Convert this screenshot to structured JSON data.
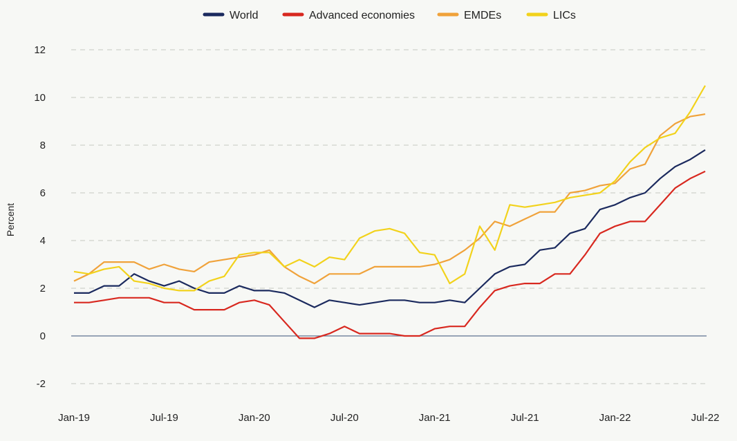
{
  "chart_data": {
    "type": "line",
    "ylabel": "Percent",
    "ylim": [
      -2,
      12
    ],
    "yticks": [
      -2,
      0,
      2,
      4,
      6,
      8,
      10,
      12
    ],
    "grid": true,
    "legend_position": "top",
    "x": [
      "Jan-19",
      "Feb-19",
      "Mar-19",
      "Apr-19",
      "May-19",
      "Jun-19",
      "Jul-19",
      "Aug-19",
      "Sep-19",
      "Oct-19",
      "Nov-19",
      "Dec-19",
      "Jan-20",
      "Feb-20",
      "Mar-20",
      "Apr-20",
      "May-20",
      "Jun-20",
      "Jul-20",
      "Aug-20",
      "Sep-20",
      "Oct-20",
      "Nov-20",
      "Dec-20",
      "Jan-21",
      "Feb-21",
      "Mar-21",
      "Apr-21",
      "May-21",
      "Jun-21",
      "Jul-21",
      "Aug-21",
      "Sep-21",
      "Oct-21",
      "Nov-21",
      "Dec-21",
      "Jan-22",
      "Feb-22",
      "Mar-22",
      "Apr-22",
      "May-22",
      "Jun-22",
      "Jul-22"
    ],
    "xtick_labels": [
      "Jan-19",
      "Jul-19",
      "Jan-20",
      "Jul-20",
      "Jan-21",
      "Jul-21",
      "Jan-22",
      "Jul-22"
    ],
    "xtick_index": [
      0,
      6,
      12,
      18,
      24,
      30,
      36,
      42
    ],
    "series": [
      {
        "name": "World",
        "color": "#1b2a5e",
        "values": [
          1.8,
          1.8,
          2.1,
          2.1,
          2.6,
          2.3,
          2.1,
          2.3,
          2.0,
          1.8,
          1.8,
          2.1,
          1.9,
          1.9,
          1.8,
          1.5,
          1.2,
          1.5,
          1.4,
          1.3,
          1.4,
          1.5,
          1.5,
          1.4,
          1.4,
          1.5,
          1.4,
          2.0,
          2.6,
          2.9,
          3.0,
          3.6,
          3.7,
          4.3,
          4.5,
          5.3,
          5.5,
          5.8,
          6.0,
          6.6,
          7.1,
          7.4,
          7.8
        ]
      },
      {
        "name": "Advanced economies",
        "color": "#d8281f",
        "values": [
          1.4,
          1.4,
          1.5,
          1.6,
          1.6,
          1.6,
          1.4,
          1.4,
          1.1,
          1.1,
          1.1,
          1.4,
          1.5,
          1.3,
          0.6,
          -0.1,
          -0.1,
          0.1,
          0.4,
          0.1,
          0.1,
          0.1,
          0.0,
          0.0,
          0.3,
          0.4,
          0.4,
          1.2,
          1.9,
          2.1,
          2.2,
          2.2,
          2.6,
          2.6,
          3.4,
          4.3,
          4.6,
          4.8,
          4.8,
          5.5,
          6.2,
          6.6,
          6.9
        ]
      },
      {
        "name": "EMDEs",
        "color": "#f0a23a",
        "values": [
          2.3,
          2.6,
          3.1,
          3.1,
          3.1,
          2.8,
          3.0,
          2.8,
          2.7,
          3.1,
          3.2,
          3.3,
          3.4,
          3.6,
          2.9,
          2.5,
          2.2,
          2.6,
          2.6,
          2.6,
          2.9,
          2.9,
          2.9,
          2.9,
          3.0,
          3.2,
          3.6,
          4.1,
          4.8,
          4.6,
          4.9,
          5.2,
          5.2,
          6.0,
          6.1,
          6.3,
          6.4,
          7.0,
          7.2,
          8.4,
          8.9,
          9.2,
          9.3
        ]
      },
      {
        "name": "LICs",
        "color": "#f2d21b",
        "values": [
          2.7,
          2.6,
          2.8,
          2.9,
          2.3,
          2.2,
          2.0,
          1.9,
          1.9,
          2.3,
          2.5,
          3.4,
          3.5,
          3.5,
          2.9,
          3.2,
          2.9,
          3.3,
          3.2,
          4.1,
          4.4,
          4.5,
          4.3,
          3.5,
          3.4,
          2.2,
          2.6,
          4.6,
          3.6,
          5.5,
          5.4,
          5.5,
          5.6,
          5.8,
          5.9,
          6.0,
          6.5,
          7.3,
          7.9,
          8.3,
          8.5,
          9.4,
          10.5
        ]
      }
    ]
  }
}
